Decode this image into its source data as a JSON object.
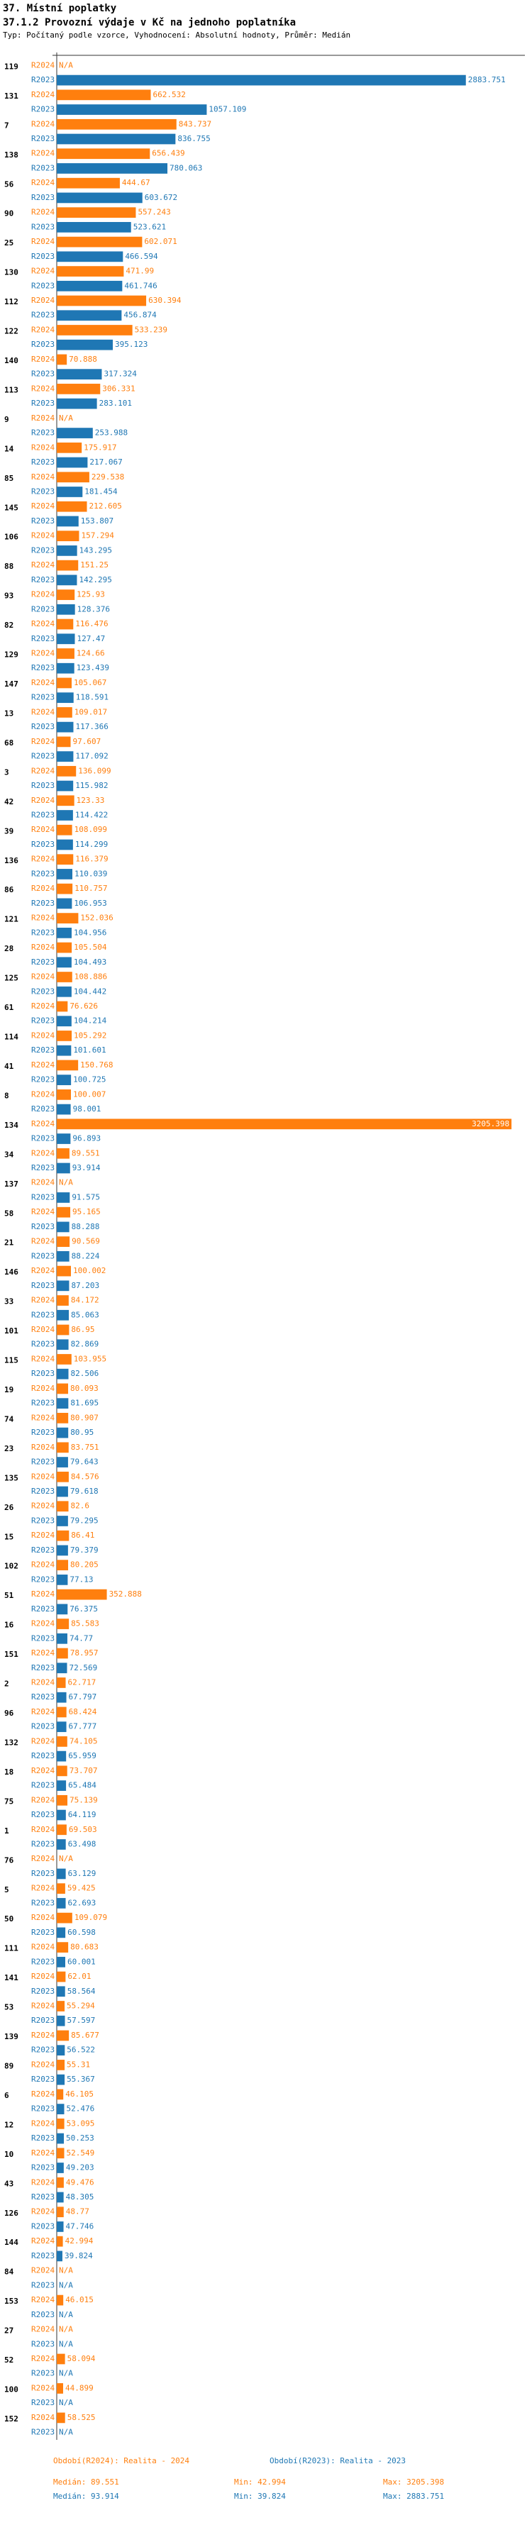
{
  "chart_data": {
    "type": "bar",
    "orientation": "horizontal",
    "title": "37. Místní poplatky",
    "subtitle": "37.1.2 Provozní výdaje v Kč na jednoho poplatníka",
    "note": "Typ: Počítaný podle vzorce, Vyhodnocení: Absolutní hodnoty, Průměr: Medián",
    "na_label": "N/A",
    "xlim": [
      0,
      3300
    ],
    "categories": [
      "119",
      "131",
      "7",
      "138",
      "56",
      "90",
      "25",
      "130",
      "112",
      "122",
      "140",
      "113",
      "9",
      "14",
      "85",
      "145",
      "106",
      "88",
      "93",
      "82",
      "129",
      "147",
      "13",
      "68",
      "3",
      "42",
      "39",
      "136",
      "86",
      "121",
      "28",
      "125",
      "61",
      "114",
      "41",
      "8",
      "134",
      "34",
      "137",
      "58",
      "21",
      "146",
      "33",
      "101",
      "115",
      "19",
      "74",
      "23",
      "135",
      "26",
      "15",
      "102",
      "51",
      "16",
      "151",
      "2",
      "96",
      "132",
      "18",
      "75",
      "1",
      "76",
      "5",
      "50",
      "111",
      "141",
      "53",
      "139",
      "89",
      "6",
      "12",
      "10",
      "43",
      "126",
      "144",
      "84",
      "153",
      "27",
      "52",
      "100",
      "152"
    ],
    "series": [
      {
        "name": "R2024",
        "color": "#ff7f0e",
        "legend": "Období(R2024): Realita - 2024",
        "stats": {
          "median": 89.551,
          "min": 42.994,
          "max": 3205.398
        },
        "values": [
          null,
          662.532,
          843.737,
          656.439,
          444.67,
          557.243,
          602.071,
          471.99,
          630.394,
          533.239,
          70.888,
          306.331,
          null,
          175.917,
          229.538,
          212.605,
          157.294,
          151.25,
          125.93,
          116.476,
          124.66,
          105.067,
          109.017,
          97.607,
          136.099,
          123.33,
          108.099,
          116.379,
          110.757,
          152.036,
          105.504,
          108.886,
          76.626,
          105.292,
          150.768,
          100.007,
          3205.398,
          89.551,
          null,
          95.165,
          90.569,
          100.002,
          84.172,
          86.95,
          103.955,
          80.093,
          80.907,
          83.751,
          84.576,
          82.6,
          86.41,
          80.205,
          352.888,
          85.583,
          78.957,
          62.717,
          68.424,
          74.105,
          73.707,
          75.139,
          69.503,
          null,
          59.425,
          109.079,
          80.683,
          62.01,
          55.294,
          85.677,
          55.31,
          46.105,
          53.095,
          52.549,
          49.476,
          48.77,
          42.994,
          null,
          46.015,
          null,
          58.094,
          44.899,
          58.525
        ]
      },
      {
        "name": "R2023",
        "color": "#1f77b4",
        "legend": "Období(R2023): Realita - 2023",
        "stats": {
          "median": 93.914,
          "min": 39.824,
          "max": 2883.751
        },
        "values": [
          2883.751,
          1057.109,
          836.755,
          780.063,
          603.672,
          523.621,
          466.594,
          461.746,
          456.874,
          395.123,
          317.324,
          283.101,
          253.988,
          217.067,
          181.454,
          153.807,
          143.295,
          142.295,
          128.376,
          127.47,
          123.439,
          118.591,
          117.366,
          117.092,
          115.982,
          114.422,
          114.299,
          110.039,
          106.953,
          104.956,
          104.493,
          104.442,
          104.214,
          101.601,
          100.725,
          98.001,
          96.893,
          93.914,
          91.575,
          88.288,
          88.224,
          87.203,
          85.063,
          82.869,
          82.506,
          81.695,
          80.95,
          79.643,
          79.618,
          79.295,
          79.379,
          77.13,
          76.375,
          74.77,
          72.569,
          67.797,
          67.777,
          65.959,
          65.484,
          64.119,
          63.498,
          63.129,
          62.693,
          60.598,
          60.001,
          58.564,
          57.597,
          56.522,
          55.367,
          52.476,
          50.253,
          49.203,
          48.305,
          47.746,
          39.824,
          null,
          null,
          null,
          null,
          null,
          null
        ]
      }
    ],
    "stat_labels": {
      "median": "Medián:",
      "min": "Min:",
      "max": "Max:"
    }
  }
}
